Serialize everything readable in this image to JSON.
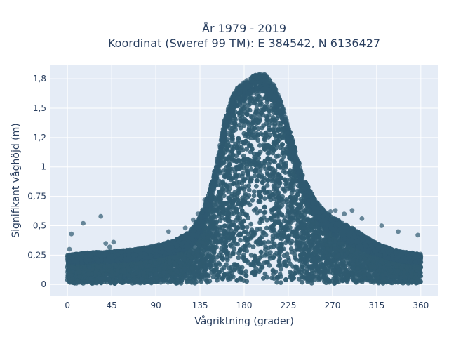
{
  "chart_data": {
    "type": "scatter",
    "title_line1": "År 1979 - 2019",
    "title_line2": "Koordinat (Sweref 99 TM): E 384542, N 6136427",
    "xlabel": "Vågriktning (grader)",
    "ylabel": "Signifikant våghöjd (m)",
    "xlim": [
      -18,
      378
    ],
    "ylim": [
      -0.1,
      1.87
    ],
    "xticks": [
      0,
      45,
      90,
      135,
      180,
      225,
      270,
      315,
      360
    ],
    "xtick_labels": [
      "0",
      "45",
      "90",
      "135",
      "180",
      "225",
      "270",
      "315",
      "360"
    ],
    "yticks": [
      0,
      0.25,
      0.5,
      0.75,
      1,
      1.25,
      1.5,
      1.75
    ],
    "ytick_labels": [
      "0",
      "0,25",
      "0,5",
      "0,75",
      "1",
      "1,2",
      "1,5",
      "1,8"
    ],
    "grid": true,
    "marker_color": "#2f5a70",
    "plot_bg": "#e5ecf6",
    "envelope": {
      "x": [
        0,
        20,
        45,
        70,
        90,
        110,
        125,
        135,
        145,
        152,
        160,
        170,
        180,
        190,
        200,
        210,
        218,
        225,
        232,
        240,
        250,
        262,
        275,
        290,
        305,
        320,
        340,
        360
      ],
      "ymax": [
        0.25,
        0.27,
        0.28,
        0.3,
        0.33,
        0.38,
        0.45,
        0.58,
        0.8,
        1.05,
        1.4,
        1.65,
        1.72,
        1.78,
        1.8,
        1.7,
        1.55,
        1.35,
        1.15,
        0.92,
        0.75,
        0.62,
        0.55,
        0.48,
        0.4,
        0.33,
        0.28,
        0.26
      ]
    },
    "outliers": [
      {
        "x": 34,
        "y": 0.58
      },
      {
        "x": 16,
        "y": 0.52
      },
      {
        "x": 4,
        "y": 0.43
      },
      {
        "x": 2,
        "y": 0.3
      },
      {
        "x": 39,
        "y": 0.35
      },
      {
        "x": 43,
        "y": 0.32
      },
      {
        "x": 47,
        "y": 0.36
      },
      {
        "x": 120,
        "y": 0.48
      },
      {
        "x": 103,
        "y": 0.45
      },
      {
        "x": 128,
        "y": 0.55
      },
      {
        "x": 133,
        "y": 0.6
      },
      {
        "x": 140,
        "y": 0.72
      },
      {
        "x": 268,
        "y": 0.62
      },
      {
        "x": 273,
        "y": 0.63
      },
      {
        "x": 282,
        "y": 0.6
      },
      {
        "x": 290,
        "y": 0.63
      },
      {
        "x": 300,
        "y": 0.56
      },
      {
        "x": 320,
        "y": 0.5
      },
      {
        "x": 337,
        "y": 0.45
      },
      {
        "x": 357,
        "y": 0.42
      },
      {
        "x": 22,
        "y": 0.15
      },
      {
        "x": 24,
        "y": 0.05
      },
      {
        "x": 33,
        "y": 0.05
      },
      {
        "x": 58,
        "y": 0.06
      },
      {
        "x": 85,
        "y": 0.08
      },
      {
        "x": 95,
        "y": 0.04
      },
      {
        "x": 329,
        "y": 0.03
      }
    ]
  }
}
